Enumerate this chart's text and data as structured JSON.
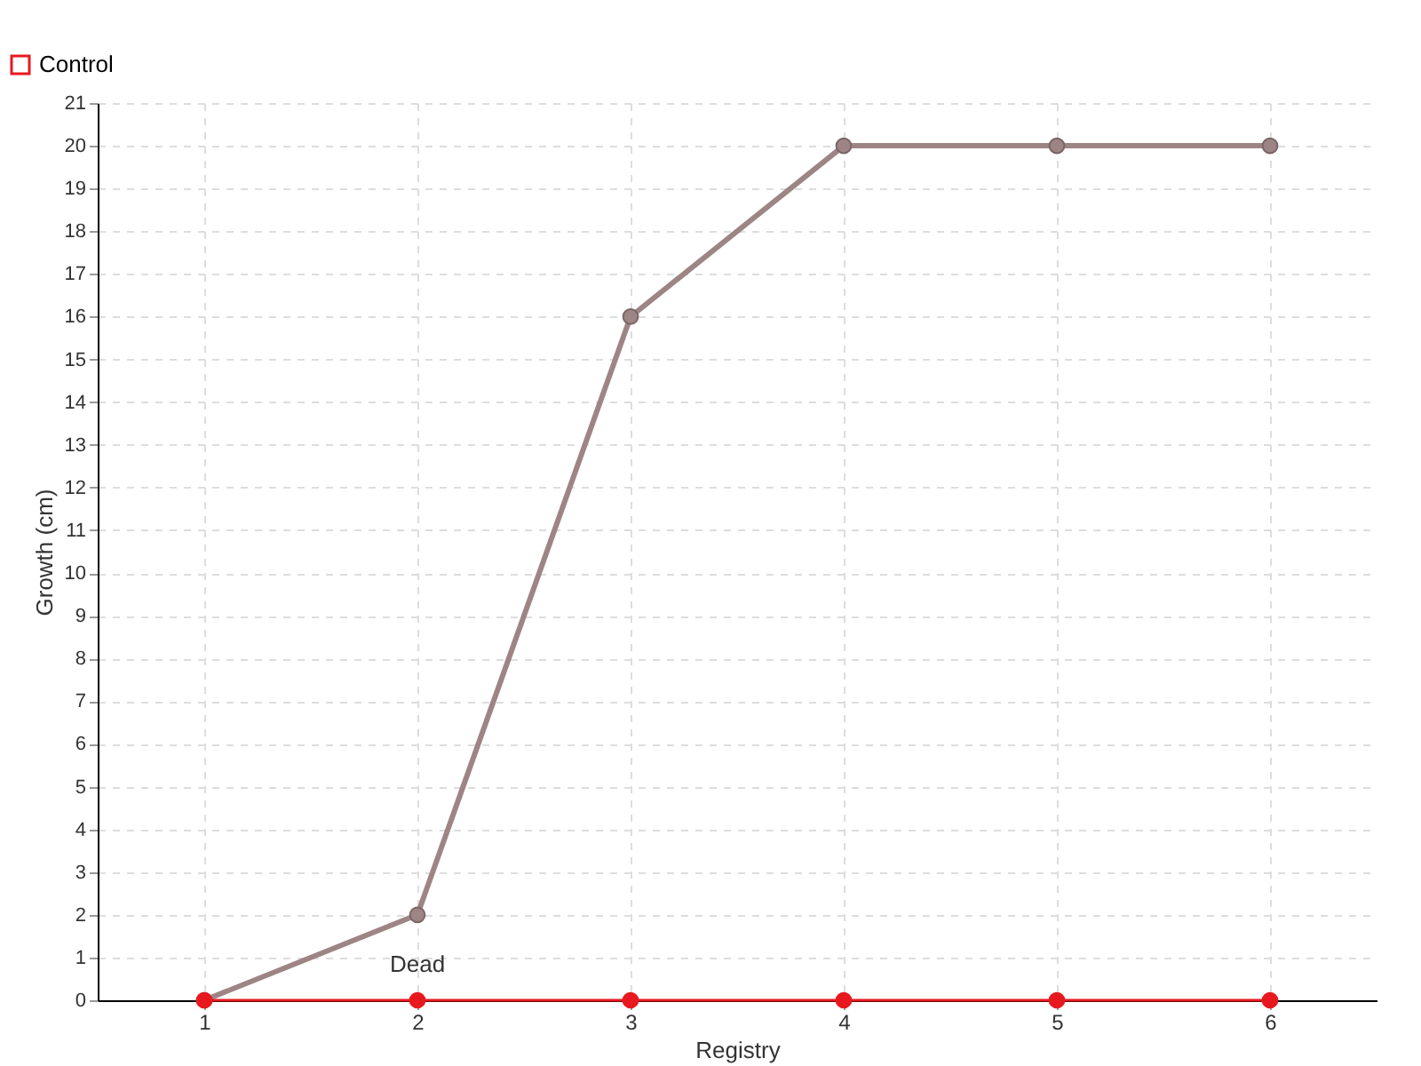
{
  "chart_data": {
    "type": "line",
    "xlabel": "Registry",
    "ylabel": "Growth (cm)",
    "categories": [
      "1",
      "2",
      "3",
      "4",
      "5",
      "6"
    ],
    "series": [
      {
        "color": "#9e8585",
        "values": [
          0,
          2,
          16,
          20,
          20,
          20
        ]
      },
      {
        "name": "Control",
        "color": "#e8191e",
        "values": [
          0,
          0,
          0,
          0,
          0,
          0
        ]
      }
    ],
    "ylim": [
      0,
      21
    ],
    "yticks": [
      0,
      1,
      2,
      3,
      4,
      5,
      6,
      7,
      8,
      9,
      10,
      11,
      12,
      13,
      14,
      15,
      16,
      17,
      18,
      19,
      20,
      21
    ],
    "annotations": [
      {
        "text": "Dead",
        "x": "2",
        "y": 0
      }
    ],
    "grid": true,
    "legend": "top left",
    "marker": "circle",
    "line_style": "solid"
  }
}
